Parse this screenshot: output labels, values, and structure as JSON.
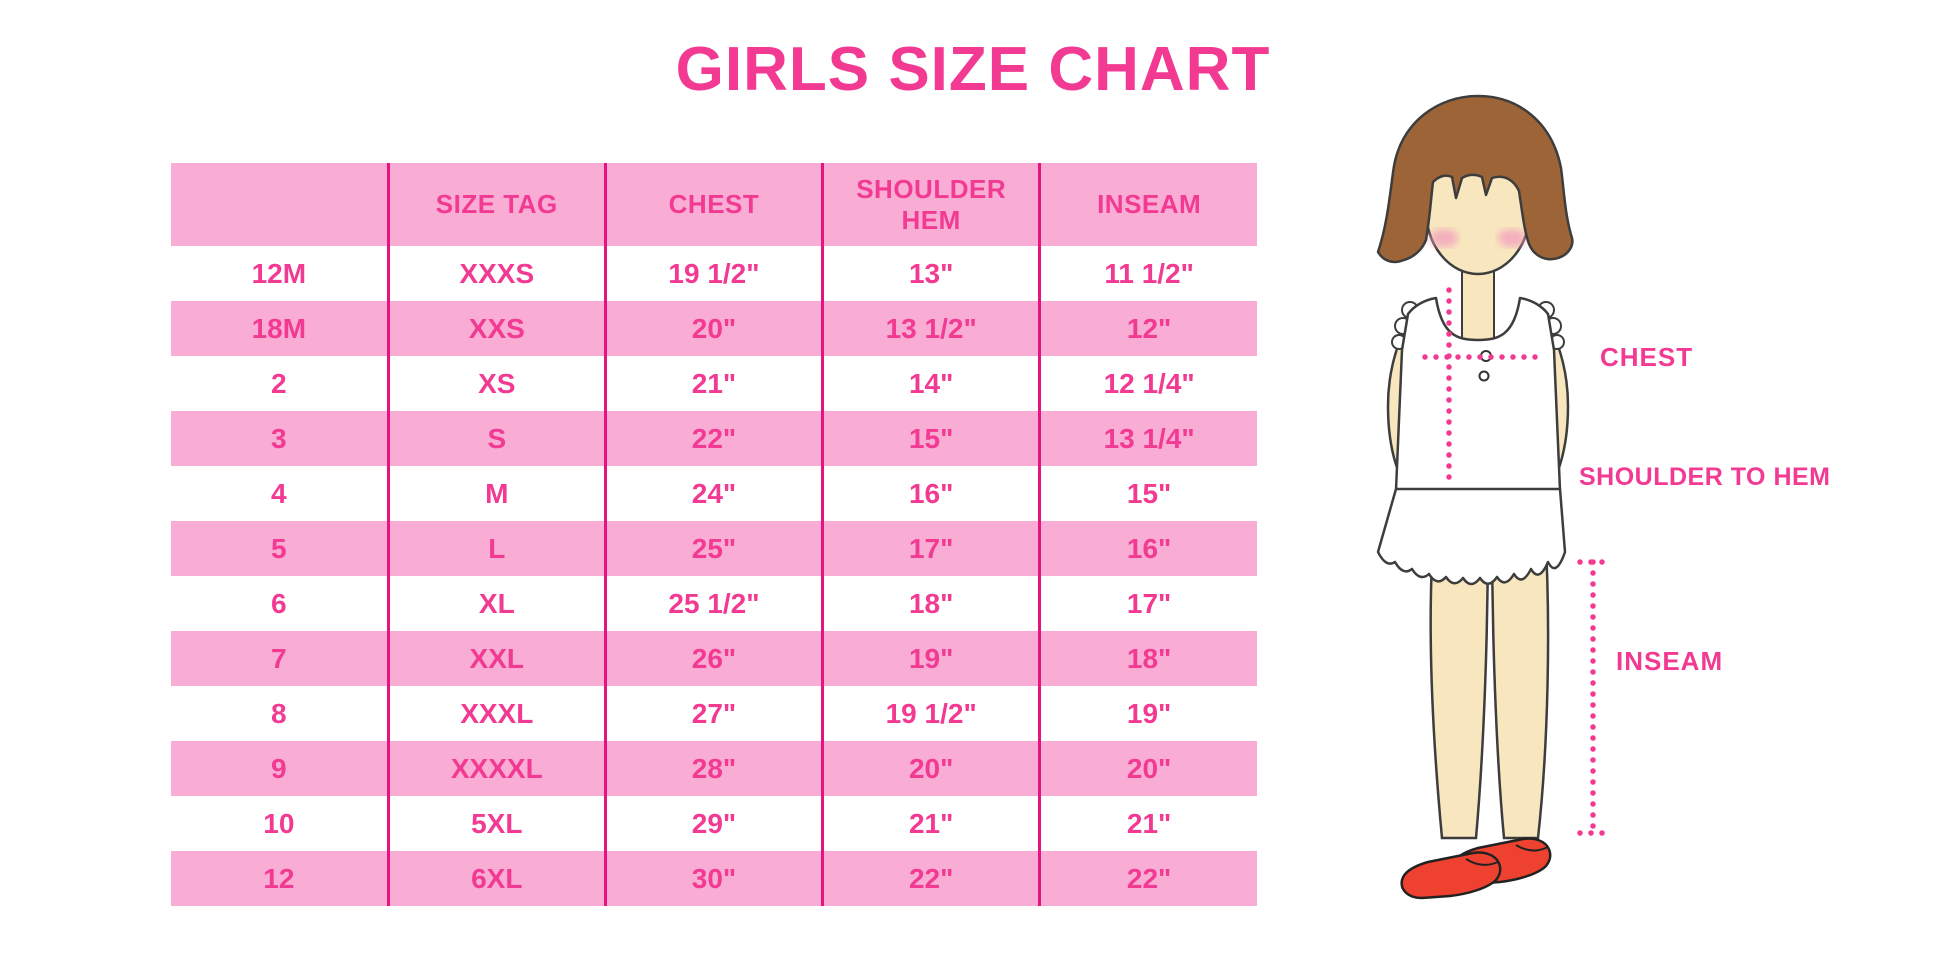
{
  "title": "GIRLS SIZE CHART",
  "chart_data": {
    "type": "table",
    "columns": [
      "",
      "SIZE TAG",
      "CHEST",
      "SHOULDER HEM",
      "INSEAM"
    ],
    "rows": [
      [
        "12M",
        "XXXS",
        "19 1/2\"",
        "13\"",
        "11 1/2\""
      ],
      [
        "18M",
        "XXS",
        "20\"",
        "13 1/2\"",
        "12\""
      ],
      [
        "2",
        "XS",
        "21\"",
        "14\"",
        "12 1/4\""
      ],
      [
        "3",
        "S",
        "22\"",
        "15\"",
        "13 1/4\""
      ],
      [
        "4",
        "M",
        "24\"",
        "16\"",
        "15\""
      ],
      [
        "5",
        "L",
        "25\"",
        "17\"",
        "16\""
      ],
      [
        "6",
        "XL",
        "25 1/2\"",
        "18\"",
        "17\""
      ],
      [
        "7",
        "XXL",
        "26\"",
        "19\"",
        "18\""
      ],
      [
        "8",
        "XXXL",
        "27\"",
        "19 1/2\"",
        "19\""
      ],
      [
        "9",
        "XXXXL",
        "28\"",
        "20\"",
        "20\""
      ],
      [
        "10",
        "5XL",
        "29\"",
        "21\"",
        "21\""
      ],
      [
        "12",
        "6XL",
        "30\"",
        "22\"",
        "22\""
      ]
    ]
  },
  "diagram": {
    "labels": {
      "chest": "CHEST",
      "shoulder_to_hem": "SHOULDER TO HEM",
      "inseam": "INSEAM"
    }
  },
  "colors": {
    "accent": "#F23A93",
    "stripe": "#F9ACD4",
    "divider": "#E5147F",
    "hair": "#9D6537",
    "skin": "#F8E6BF",
    "shoe": "#EE4130",
    "outline": "#3d3d3d"
  }
}
